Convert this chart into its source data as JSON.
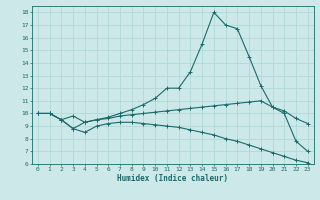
{
  "title": "",
  "xlabel": "Humidex (Indice chaleur)",
  "ylabel": "",
  "xlim": [
    -0.5,
    23.5
  ],
  "ylim": [
    6,
    18.5
  ],
  "yticks": [
    6,
    7,
    8,
    9,
    10,
    11,
    12,
    13,
    14,
    15,
    16,
    17,
    18
  ],
  "xticks": [
    0,
    1,
    2,
    3,
    4,
    5,
    6,
    7,
    8,
    9,
    10,
    11,
    12,
    13,
    14,
    15,
    16,
    17,
    18,
    19,
    20,
    21,
    22,
    23
  ],
  "background_color": "#cce8e8",
  "grid_color": "#b0d8d8",
  "line_color": "#1a6b6b",
  "line1_x": [
    0,
    1,
    2,
    3,
    4,
    5,
    6,
    7,
    8,
    9,
    10,
    11,
    12,
    13,
    14,
    15,
    16,
    17,
    18,
    19,
    20,
    21,
    22,
    23
  ],
  "line1_y": [
    10.0,
    10.0,
    9.5,
    8.8,
    9.3,
    9.5,
    9.7,
    10.0,
    10.3,
    10.7,
    11.2,
    12.0,
    12.0,
    13.3,
    15.5,
    18.0,
    17.0,
    16.7,
    14.5,
    12.2,
    10.5,
    10.0,
    7.8,
    7.0
  ],
  "line2_x": [
    0,
    1,
    2,
    3,
    4,
    5,
    6,
    7,
    8,
    9,
    10,
    11,
    12,
    13,
    14,
    15,
    16,
    17,
    18,
    19,
    20,
    21,
    22,
    23
  ],
  "line2_y": [
    10.0,
    10.0,
    9.5,
    9.8,
    9.3,
    9.5,
    9.6,
    9.8,
    9.9,
    10.0,
    10.1,
    10.2,
    10.3,
    10.4,
    10.5,
    10.6,
    10.7,
    10.8,
    10.9,
    11.0,
    10.5,
    10.2,
    9.6,
    9.2
  ],
  "line3_x": [
    0,
    1,
    2,
    3,
    4,
    5,
    6,
    7,
    8,
    9,
    10,
    11,
    12,
    13,
    14,
    15,
    16,
    17,
    18,
    19,
    20,
    21,
    22,
    23
  ],
  "line3_y": [
    10.0,
    10.0,
    9.5,
    8.8,
    8.5,
    9.0,
    9.2,
    9.3,
    9.3,
    9.2,
    9.1,
    9.0,
    8.9,
    8.7,
    8.5,
    8.3,
    8.0,
    7.8,
    7.5,
    7.2,
    6.9,
    6.6,
    6.3,
    6.1
  ]
}
